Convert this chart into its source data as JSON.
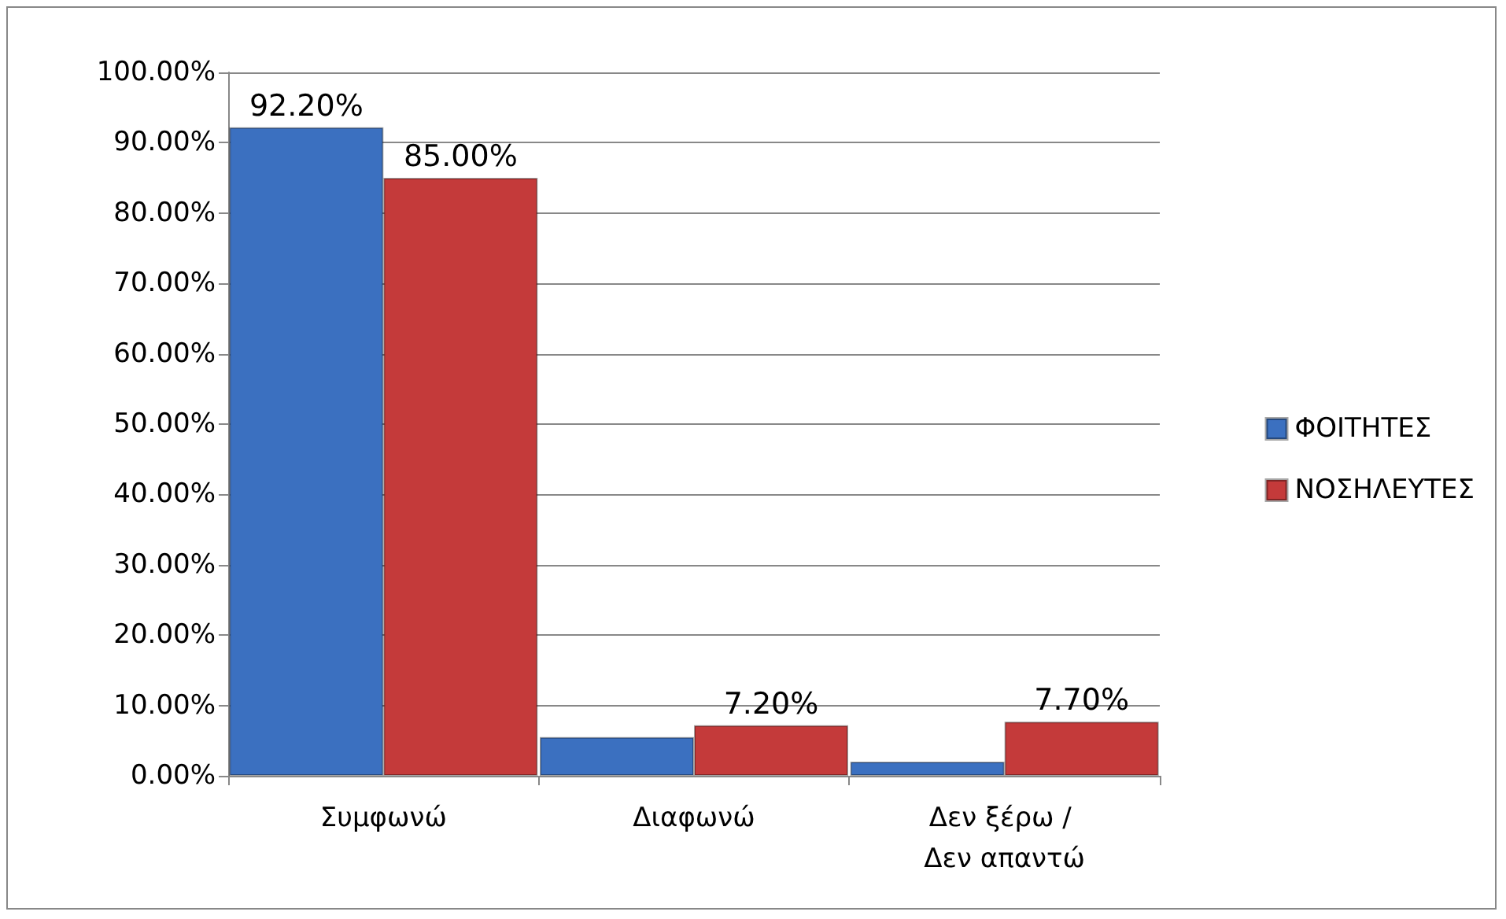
{
  "chart_data": {
    "type": "bar",
    "categories": [
      "Συμφωνώ",
      "Διαφωνώ",
      "Δεν ξέρω / Δεν απαντώ"
    ],
    "series": [
      {
        "name": "ΦΟΙΤΗΤΕΣ",
        "color": "#3b70c0",
        "values": [
          92.2,
          5.5,
          2.0
        ],
        "value_labels": [
          "92.20%",
          null,
          null
        ]
      },
      {
        "name": "ΝΟΣΗΛΕΥΤΕΣ",
        "color": "#c43a3a",
        "values": [
          85.0,
          7.2,
          7.7
        ],
        "value_labels": [
          "85.00%",
          "7.20%",
          "7.70%"
        ]
      }
    ],
    "ylim": [
      0,
      100
    ],
    "yticks": [
      {
        "value": 0,
        "label": "0.00%"
      },
      {
        "value": 10,
        "label": "10.00%"
      },
      {
        "value": 20,
        "label": "20.00%"
      },
      {
        "value": 30,
        "label": "30.00%"
      },
      {
        "value": 40,
        "label": "40.00%"
      },
      {
        "value": 50,
        "label": "50.00%"
      },
      {
        "value": 60,
        "label": "60.00%"
      },
      {
        "value": 70,
        "label": "70.00%"
      },
      {
        "value": 80,
        "label": "80.00%"
      },
      {
        "value": 90,
        "label": "90.00%"
      },
      {
        "value": 100,
        "label": "100.00%"
      }
    ],
    "grid": "y",
    "legend": "right"
  }
}
